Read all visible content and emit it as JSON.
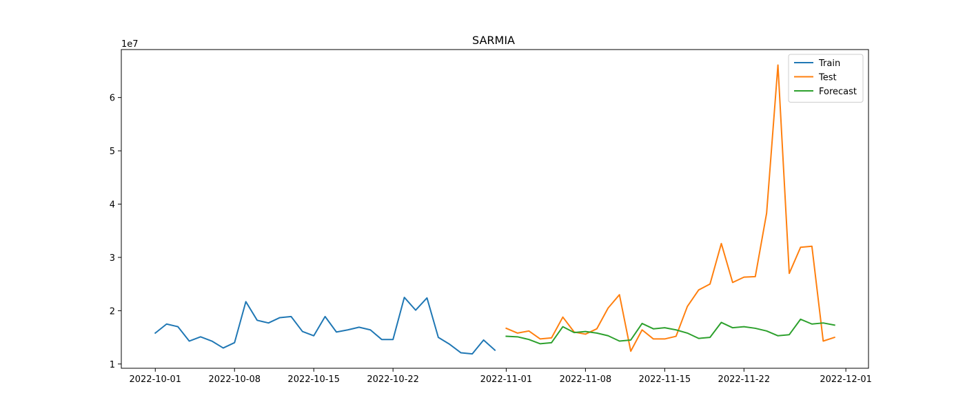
{
  "chart_data": {
    "type": "line",
    "title": "SARMIA",
    "xlabel": "",
    "ylabel": "",
    "y_offset_label": "1e7",
    "y_ticks": [
      1,
      2,
      3,
      4,
      5,
      6
    ],
    "y_tick_labels": [
      "1",
      "2",
      "3",
      "4",
      "5",
      "6"
    ],
    "ylim": [
      0.92,
      6.9
    ],
    "xlim": [
      "2022-09-28",
      "2022-12-03"
    ],
    "x_ticks": [
      "2022-10-01",
      "2022-10-08",
      "2022-10-15",
      "2022-10-22",
      "2022-11-01",
      "2022-11-08",
      "2022-11-15",
      "2022-11-22",
      "2022-12-01"
    ],
    "x_tick_labels": [
      "2022-10-01",
      "2022-10-08",
      "2022-10-15",
      "2022-10-22",
      "2022-11-01",
      "2022-11-08",
      "2022-11-15",
      "2022-11-22",
      "2022-12-01"
    ],
    "legend_position": "top-right",
    "grid": false,
    "series": [
      {
        "name": "Train",
        "color": "#1f77b4",
        "x": [
          "2022-10-01",
          "2022-10-02",
          "2022-10-03",
          "2022-10-04",
          "2022-10-05",
          "2022-10-06",
          "2022-10-07",
          "2022-10-08",
          "2022-10-09",
          "2022-10-10",
          "2022-10-11",
          "2022-10-12",
          "2022-10-13",
          "2022-10-14",
          "2022-10-15",
          "2022-10-16",
          "2022-10-17",
          "2022-10-18",
          "2022-10-19",
          "2022-10-20",
          "2022-10-21",
          "2022-10-22",
          "2022-10-23",
          "2022-10-24",
          "2022-10-25",
          "2022-10-26",
          "2022-10-27",
          "2022-10-28",
          "2022-10-29",
          "2022-10-30",
          "2022-10-31"
        ],
        "y": [
          1.58,
          1.75,
          1.7,
          1.43,
          1.51,
          1.43,
          1.3,
          1.4,
          2.17,
          1.82,
          1.77,
          1.87,
          1.89,
          1.61,
          1.53,
          1.89,
          1.6,
          1.64,
          1.69,
          1.64,
          1.46,
          1.46,
          2.25,
          2.01,
          2.24,
          1.5,
          1.37,
          1.21,
          1.19,
          1.45,
          1.26
        ]
      },
      {
        "name": "Test",
        "color": "#ff7f0e",
        "x": [
          "2022-11-01",
          "2022-11-02",
          "2022-11-03",
          "2022-11-04",
          "2022-11-05",
          "2022-11-06",
          "2022-11-07",
          "2022-11-08",
          "2022-11-09",
          "2022-11-10",
          "2022-11-11",
          "2022-11-12",
          "2022-11-13",
          "2022-11-14",
          "2022-11-15",
          "2022-11-16",
          "2022-11-17",
          "2022-11-18",
          "2022-11-19",
          "2022-11-20",
          "2022-11-21",
          "2022-11-22",
          "2022-11-23",
          "2022-11-24",
          "2022-11-25",
          "2022-11-26",
          "2022-11-27",
          "2022-11-28",
          "2022-11-29",
          "2022-11-30"
        ],
        "y": [
          1.67,
          1.58,
          1.62,
          1.47,
          1.49,
          1.88,
          1.6,
          1.56,
          1.66,
          2.05,
          2.3,
          1.24,
          1.64,
          1.47,
          1.47,
          1.52,
          2.08,
          2.39,
          2.5,
          3.26,
          2.53,
          2.63,
          2.64,
          3.83,
          6.61,
          2.7,
          3.19,
          3.21,
          1.43,
          1.5
        ]
      },
      {
        "name": "Forecast",
        "color": "#2ca02c",
        "x": [
          "2022-11-01",
          "2022-11-02",
          "2022-11-03",
          "2022-11-04",
          "2022-11-05",
          "2022-11-06",
          "2022-11-07",
          "2022-11-08",
          "2022-11-09",
          "2022-11-10",
          "2022-11-11",
          "2022-11-12",
          "2022-11-13",
          "2022-11-14",
          "2022-11-15",
          "2022-11-16",
          "2022-11-17",
          "2022-11-18",
          "2022-11-19",
          "2022-11-20",
          "2022-11-21",
          "2022-11-22",
          "2022-11-23",
          "2022-11-24",
          "2022-11-25",
          "2022-11-26",
          "2022-11-27",
          "2022-11-28",
          "2022-11-29",
          "2022-11-30"
        ],
        "y": [
          1.52,
          1.51,
          1.46,
          1.38,
          1.4,
          1.7,
          1.59,
          1.61,
          1.58,
          1.53,
          1.43,
          1.45,
          1.76,
          1.66,
          1.68,
          1.64,
          1.58,
          1.48,
          1.5,
          1.78,
          1.68,
          1.7,
          1.67,
          1.62,
          1.53,
          1.55,
          1.84,
          1.75,
          1.77,
          1.73
        ]
      }
    ]
  }
}
